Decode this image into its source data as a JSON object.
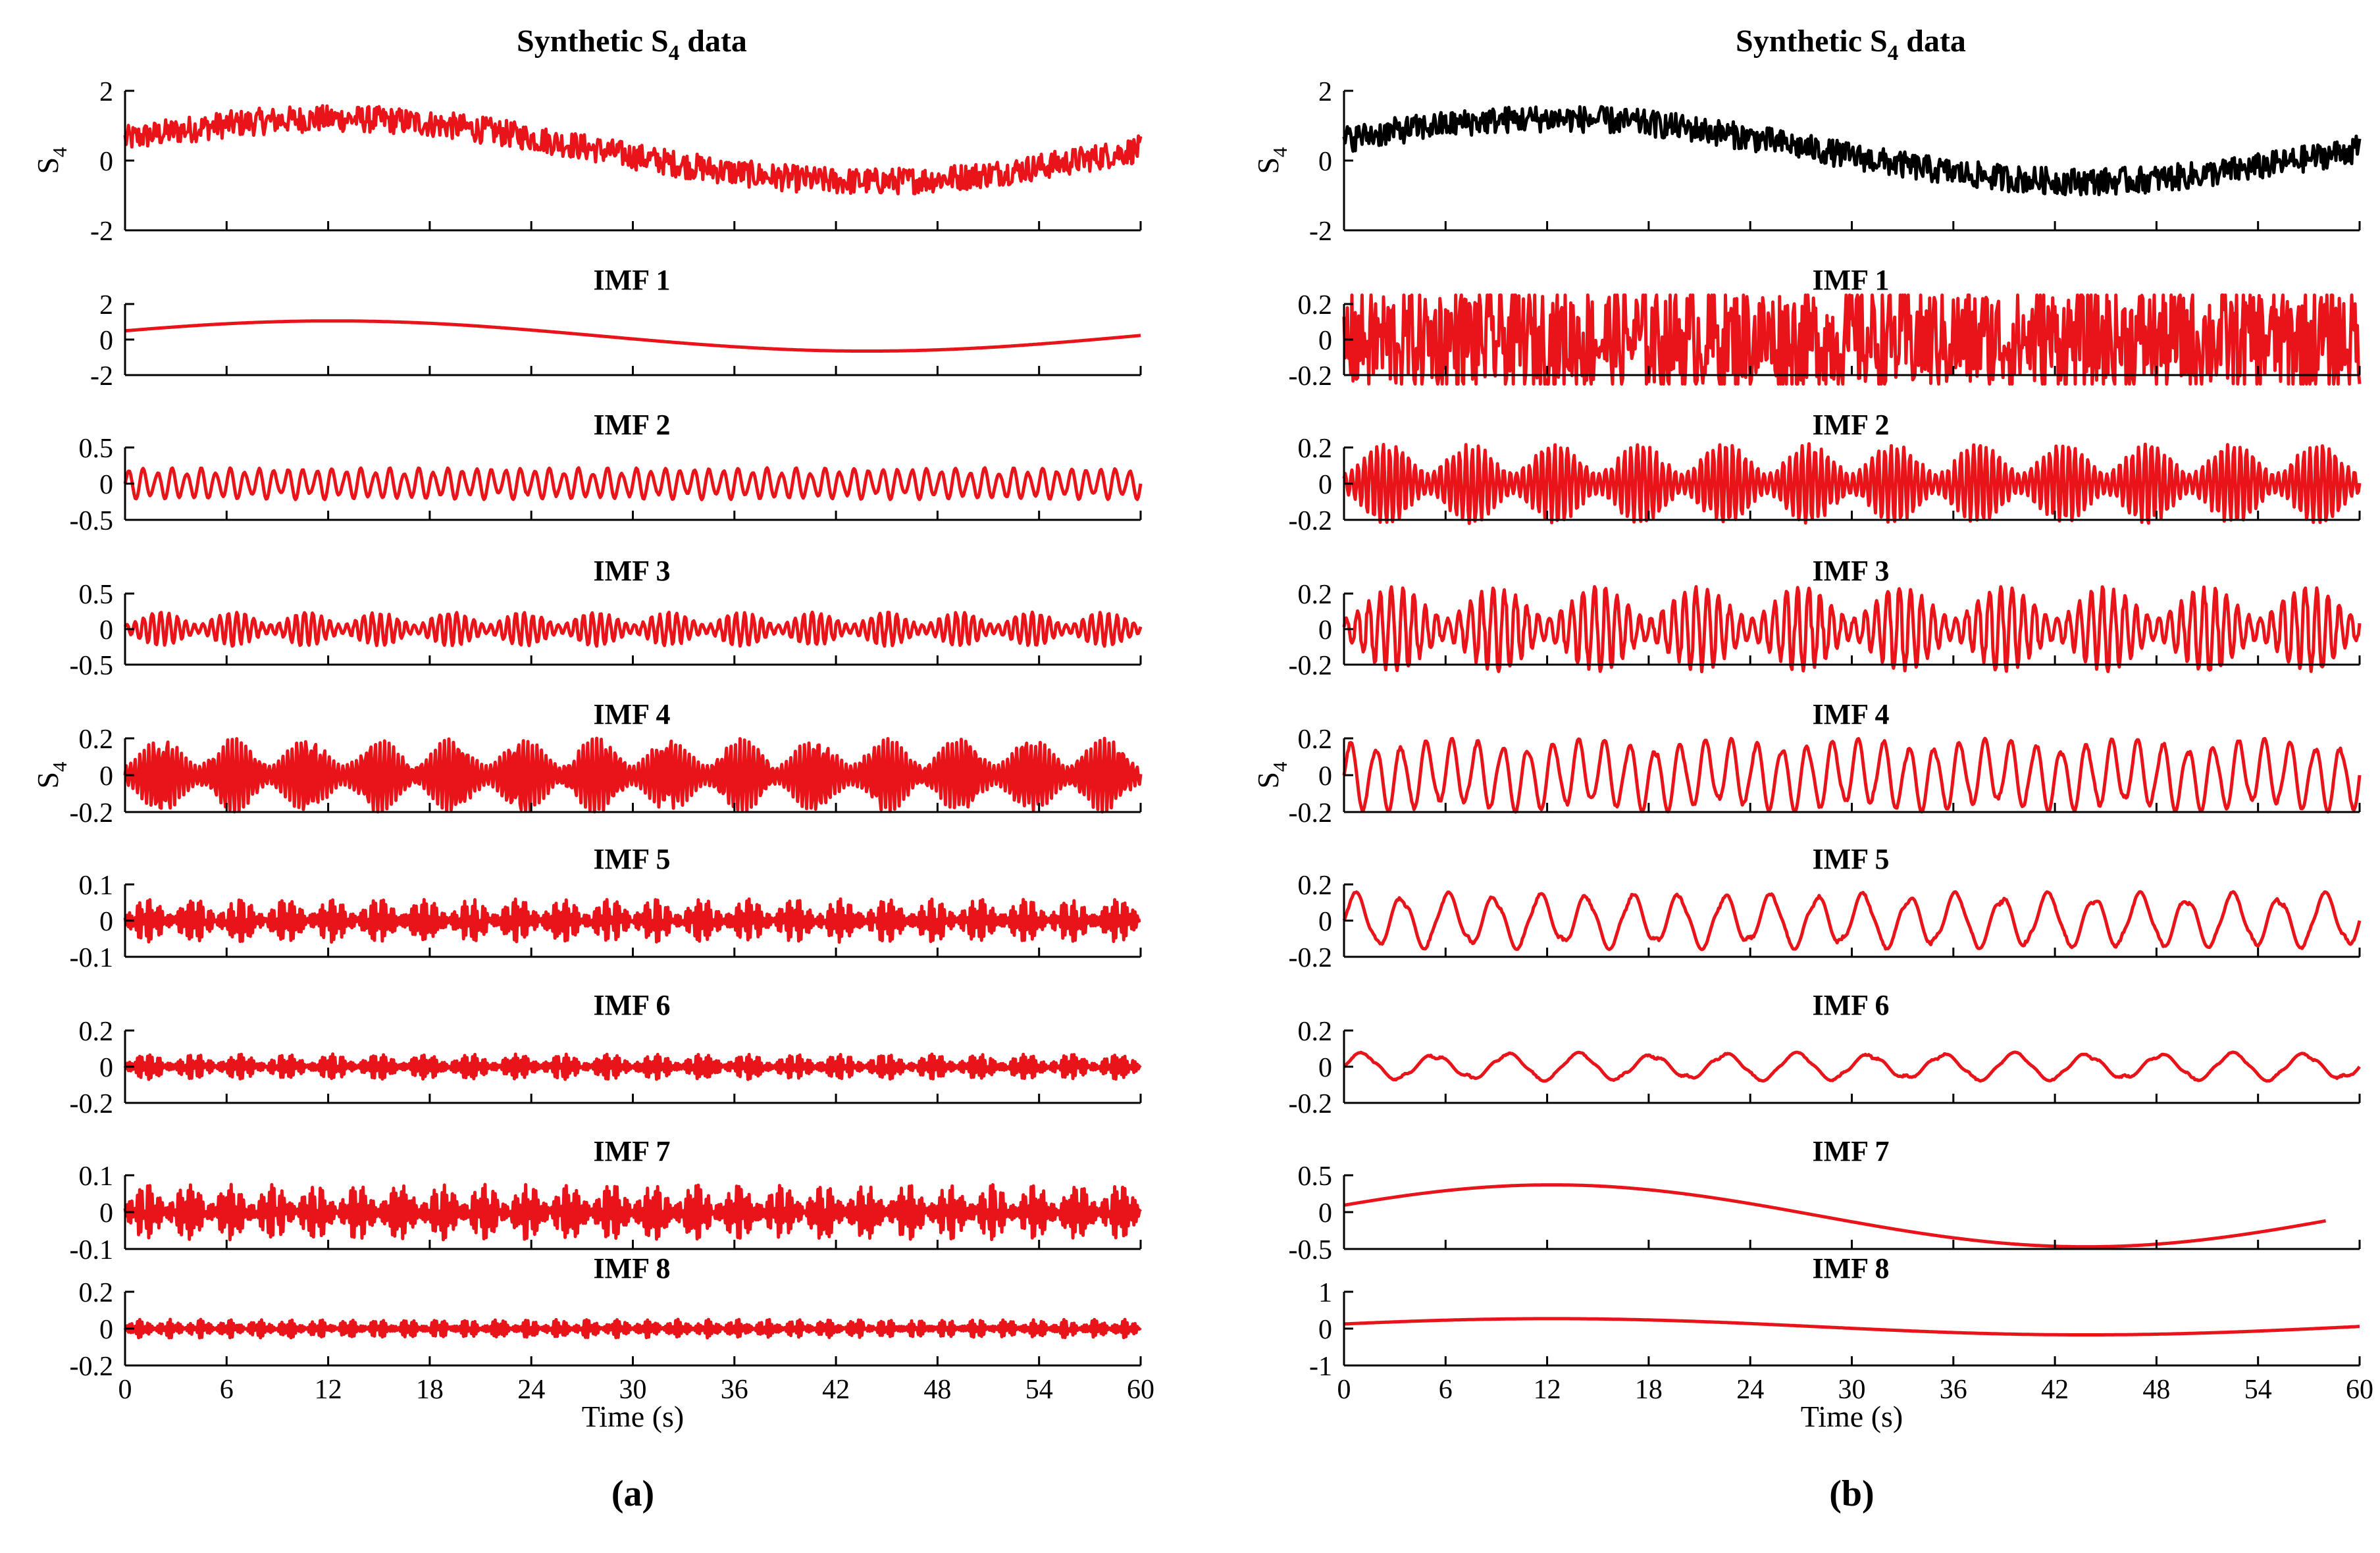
{
  "colors": {
    "signal": "#e8141a",
    "raw": "#000000",
    "axis": "#000000"
  },
  "chart_data": [
    {
      "type": "line",
      "panel_label": "(a)",
      "xlabel": "Time (s)",
      "ylabel": "S4",
      "x_ticks": [
        "0",
        "6",
        "12",
        "18",
        "24",
        "30",
        "36",
        "42",
        "48",
        "54",
        "60"
      ],
      "xlim": [
        0,
        60
      ],
      "subplots": [
        {
          "title": "Synthetic S4 data",
          "ylim": [
            -2,
            2
          ],
          "yticks": [
            "2",
            "0",
            "-2"
          ],
          "signal": {
            "kind": "trend_noise",
            "base": 0.3,
            "trend": 0.9,
            "noise": 0.55,
            "color": "signal"
          }
        },
        {
          "title": "IMF 1",
          "ylim": [
            -2,
            2
          ],
          "yticks": [
            "2",
            "0",
            "-2"
          ],
          "signal": {
            "kind": "trend",
            "base": 0.2,
            "trend": 0.85,
            "color": "signal"
          }
        },
        {
          "title": "IMF 2",
          "ylim": [
            -0.5,
            0.5
          ],
          "yticks": [
            "0.5",
            "0",
            "-0.5"
          ],
          "signal": {
            "kind": "osc",
            "amp": 0.22,
            "cycles": 70,
            "color": "signal"
          }
        },
        {
          "title": "IMF 3",
          "ylim": [
            -0.5,
            0.5
          ],
          "yticks": [
            "0.5",
            "0",
            "-0.5"
          ],
          "signal": {
            "kind": "burst",
            "amp": 0.24,
            "cycles": 120,
            "envs": 14,
            "color": "signal"
          }
        },
        {
          "title": "IMF 4",
          "ylim": [
            -0.2,
            0.2
          ],
          "yticks": [
            "0.2",
            "0",
            "-0.2"
          ],
          "signal": {
            "kind": "burst",
            "amp": 0.2,
            "cycles": 220,
            "envs": 14,
            "color": "signal"
          }
        },
        {
          "title": "IMF 5",
          "ylim": [
            -0.1,
            0.1
          ],
          "yticks": [
            "0.1",
            "0",
            "-0.1"
          ],
          "signal": {
            "kind": "burst",
            "amp": 0.06,
            "cycles": 500,
            "envs": 22,
            "color": "signal"
          }
        },
        {
          "title": "IMF 6",
          "ylim": [
            -0.2,
            0.2
          ],
          "yticks": [
            "0.2",
            "0",
            "-0.2"
          ],
          "signal": {
            "kind": "burst",
            "amp": 0.07,
            "cycles": 500,
            "envs": 22,
            "color": "signal"
          }
        },
        {
          "title": "IMF 7",
          "ylim": [
            -0.1,
            0.1
          ],
          "yticks": [
            "0.1",
            "0",
            "-0.1"
          ],
          "signal": {
            "kind": "burst",
            "amp": 0.075,
            "cycles": 500,
            "envs": 24,
            "color": "signal"
          }
        },
        {
          "title": "IMF 8",
          "ylim": [
            -0.2,
            0.2
          ],
          "yticks": [
            "0.2",
            "0",
            "-0.2"
          ],
          "signal": {
            "kind": "burst",
            "amp": 0.05,
            "cycles": 500,
            "envs": 34,
            "color": "signal"
          }
        }
      ]
    },
    {
      "type": "line",
      "panel_label": "(b)",
      "xlabel": "Time (s)",
      "ylabel": "S4",
      "x_ticks": [
        "0",
        "6",
        "12",
        "18",
        "24",
        "30",
        "36",
        "42",
        "48",
        "54",
        "60"
      ],
      "xlim": [
        0,
        60
      ],
      "subplots": [
        {
          "title": "Synthetic S4 data",
          "ylim": [
            -2,
            2
          ],
          "yticks": [
            "2",
            "0",
            "-2"
          ],
          "signal": {
            "kind": "trend_noise",
            "base": 0.3,
            "trend": 0.9,
            "noise": 0.55,
            "color": "raw"
          }
        },
        {
          "title": "IMF 1",
          "ylim": [
            -0.2,
            0.2
          ],
          "yticks": [
            "0.2",
            "0",
            "-0.2"
          ],
          "signal": {
            "kind": "noise",
            "amp": 0.3,
            "color": "signal"
          }
        },
        {
          "title": "IMF 2",
          "ylim": [
            -0.2,
            0.2
          ],
          "yticks": [
            "0.2",
            "0",
            "-0.2"
          ],
          "signal": {
            "kind": "burst",
            "amp": 0.22,
            "cycles": 160,
            "envs": 12,
            "color": "signal"
          }
        },
        {
          "title": "IMF 3",
          "ylim": [
            -0.2,
            0.2
          ],
          "yticks": [
            "0.2",
            "0",
            "-0.2"
          ],
          "signal": {
            "kind": "burst",
            "amp": 0.24,
            "cycles": 90,
            "envs": 10,
            "color": "signal"
          }
        },
        {
          "title": "IMF 4",
          "ylim": [
            -0.2,
            0.2
          ],
          "yticks": [
            "0.2",
            "0",
            "-0.2"
          ],
          "signal": {
            "kind": "osc",
            "amp": 0.2,
            "cycles": 40,
            "color": "signal"
          }
        },
        {
          "title": "IMF 5",
          "ylim": [
            -0.2,
            0.2
          ],
          "yticks": [
            "0.2",
            "0",
            "-0.2"
          ],
          "signal": {
            "kind": "osc",
            "amp": 0.16,
            "cycles": 22,
            "color": "signal"
          }
        },
        {
          "title": "IMF 6",
          "ylim": [
            -0.2,
            0.2
          ],
          "yticks": [
            "0.2",
            "0",
            "-0.2"
          ],
          "signal": {
            "kind": "osc",
            "amp": 0.08,
            "cycles": 14,
            "color": "signal"
          }
        },
        {
          "title": "IMF 7",
          "ylim": [
            -0.5,
            0.5
          ],
          "yticks": [
            "0.5",
            "0",
            "-0.5"
          ],
          "signal": {
            "kind": "trend",
            "base": -0.05,
            "trend": 0.42,
            "color": "signal",
            "xmax": 58
          }
        },
        {
          "title": "IMF 8",
          "ylim": [
            -1,
            1
          ],
          "yticks": [
            "1",
            "0",
            "-1"
          ],
          "signal": {
            "kind": "trend",
            "base": 0.05,
            "trend": 0.22,
            "color": "signal"
          }
        }
      ]
    }
  ]
}
